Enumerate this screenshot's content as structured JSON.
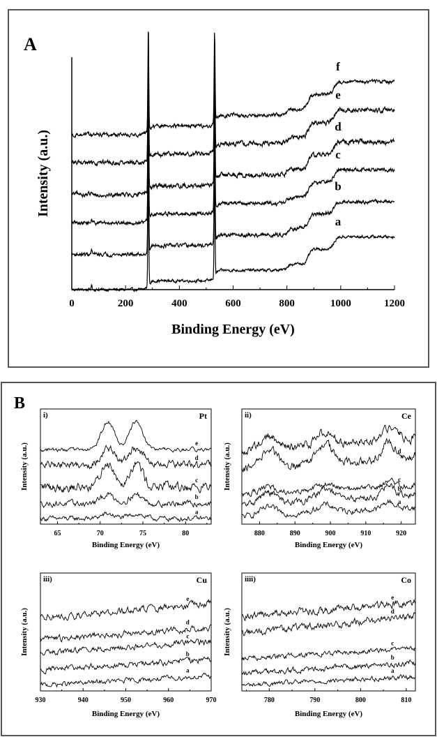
{
  "chart_data": [
    {
      "panel": "A",
      "type": "line",
      "xlabel": "Binding Energy (eV)",
      "ylabel": "Intensity (a.u.)",
      "xlim": [
        0,
        1200
      ],
      "xticks": [
        0,
        200,
        400,
        600,
        800,
        1000,
        1200
      ],
      "ylim": [
        0,
        6.6
      ],
      "grid": false,
      "curve_label_x": 990,
      "peaks": [
        {
          "center": 284.6,
          "height": 3.0,
          "width": 2.4
        },
        {
          "center": 531.0,
          "height": 2.6,
          "width": 2.4
        }
      ],
      "steps": [
        {
          "at": 285,
          "rise": 0.25
        },
        {
          "at": 532,
          "rise": 0.3
        },
        {
          "at": 800,
          "rise": 0.18
        },
        {
          "at": 880,
          "rise": 0.42
        },
        {
          "at": 975,
          "rise": 0.35
        }
      ],
      "series": [
        {
          "name": "a",
          "baseline": 0.0,
          "noise": 0.03
        },
        {
          "name": "b",
          "baseline": 1.0,
          "noise": 0.04
        },
        {
          "name": "c",
          "baseline": 1.9,
          "noise": 0.04
        },
        {
          "name": "d",
          "baseline": 2.7,
          "noise": 0.05
        },
        {
          "name": "e",
          "baseline": 3.6,
          "noise": 0.05
        },
        {
          "name": "f",
          "baseline": 4.4,
          "noise": 0.04
        }
      ]
    },
    {
      "panel": "B-i",
      "type": "line",
      "tag": "i)",
      "element": "Pt",
      "xlabel": "Binding Energy (eV)",
      "ylabel": "Intensity (a.u.)",
      "xlim": [
        63,
        83
      ],
      "xticks": [
        65,
        70,
        75,
        80
      ],
      "ylim": [
        0,
        6.2
      ],
      "grid": false,
      "curve_label_x": 81.3,
      "peaks": [
        {
          "center": 70.9,
          "width": 1.1
        },
        {
          "center": 74.2,
          "width": 1.1
        }
      ],
      "series": [
        {
          "name": "a",
          "baseline": 0.3,
          "slope": 0.0,
          "peak_height": 0.25,
          "noise": 0.1
        },
        {
          "name": "b",
          "baseline": 1.1,
          "slope": 0.0,
          "peak_height": 0.5,
          "noise": 0.12
        },
        {
          "name": "c",
          "baseline": 2.0,
          "slope": 0.0,
          "peak_height": 1.3,
          "noise": 0.2
        },
        {
          "name": "d",
          "baseline": 3.2,
          "slope": 0.0,
          "peak_height": 0.9,
          "noise": 0.15
        },
        {
          "name": "e",
          "baseline": 4.0,
          "slope": 0.0,
          "peak_height": 1.5,
          "noise": 0.08
        }
      ]
    },
    {
      "panel": "B-ii",
      "type": "line",
      "tag": "ii)",
      "element": "Ce",
      "xlabel": "Binding Energy (eV)",
      "ylabel": "Intensity (a.u.)",
      "xlim": [
        875,
        924
      ],
      "xticks": [
        880,
        890,
        900,
        910,
        920
      ],
      "ylim": [
        0,
        6.2
      ],
      "grid": false,
      "curve_label_x": 919.5,
      "peaks": [
        {
          "center": 882.5,
          "width": 3.5
        },
        {
          "center": 898.5,
          "width": 3.5
        },
        {
          "center": 916.5,
          "width": 2.2
        }
      ],
      "series": [
        {
          "name": "a",
          "baseline": 0.4,
          "slope": 0.01,
          "peak_height": 0.4,
          "noise": 0.12
        },
        {
          "name": "b",
          "baseline": 1.0,
          "slope": 0.012,
          "peak_height": 0.6,
          "noise": 0.14
        },
        {
          "name": "c",
          "baseline": 1.6,
          "slope": 0.01,
          "peak_height": 0.3,
          "noise": 0.12
        },
        {
          "name": "d",
          "baseline": 2.9,
          "slope": 0.015,
          "peak_height": 1.0,
          "noise": 0.18
        },
        {
          "name": "e",
          "baseline": 3.9,
          "slope": 0.015,
          "peak_height": 0.7,
          "noise": 0.18
        }
      ]
    },
    {
      "panel": "B-iii",
      "type": "line",
      "tag": "iii)",
      "element": "Cu",
      "xlabel": "Binding Energy (eV)",
      "ylabel": "Intensity (a.u.)",
      "xlim": [
        930,
        970
      ],
      "xticks": [
        930,
        940,
        950,
        960,
        970
      ],
      "ylim": [
        0,
        6.2
      ],
      "grid": false,
      "curve_label_x": 964.5,
      "peaks": [],
      "series": [
        {
          "name": "a",
          "baseline": 0.3,
          "slope": 0.012,
          "peak_height": 0,
          "noise": 0.1
        },
        {
          "name": "b",
          "baseline": 1.1,
          "slope": 0.014,
          "peak_height": 0,
          "noise": 0.12
        },
        {
          "name": "c",
          "baseline": 2.0,
          "slope": 0.015,
          "peak_height": 0,
          "noise": 0.12
        },
        {
          "name": "d",
          "baseline": 2.7,
          "slope": 0.016,
          "peak_height": 0,
          "noise": 0.13
        },
        {
          "name": "e",
          "baseline": 3.8,
          "slope": 0.02,
          "peak_height": 0,
          "noise": 0.14
        }
      ]
    },
    {
      "panel": "B-iiii",
      "type": "line",
      "tag": "iiii)",
      "element": "Co",
      "xlabel": "Binding Energy (eV)",
      "ylabel": "Intensity (a.u.)",
      "xlim": [
        774,
        812
      ],
      "xticks": [
        780,
        790,
        800,
        810
      ],
      "ylim": [
        0,
        6.2
      ],
      "grid": false,
      "curve_label_x": 807,
      "peaks": [],
      "series": [
        {
          "name": "a",
          "baseline": 0.3,
          "slope": 0.012,
          "peak_height": 0,
          "noise": 0.1
        },
        {
          "name": "b",
          "baseline": 0.9,
          "slope": 0.015,
          "peak_height": 0,
          "noise": 0.12
        },
        {
          "name": "c",
          "baseline": 1.7,
          "slope": 0.014,
          "peak_height": 0,
          "noise": 0.1
        },
        {
          "name": "d",
          "baseline": 3.0,
          "slope": 0.025,
          "peak_height": 0,
          "noise": 0.14
        },
        {
          "name": "e",
          "baseline": 3.9,
          "slope": 0.02,
          "peak_height": 0,
          "noise": 0.15
        }
      ]
    }
  ],
  "panels": {
    "A": {
      "letter": "A"
    },
    "B": {
      "letter": "B"
    }
  }
}
